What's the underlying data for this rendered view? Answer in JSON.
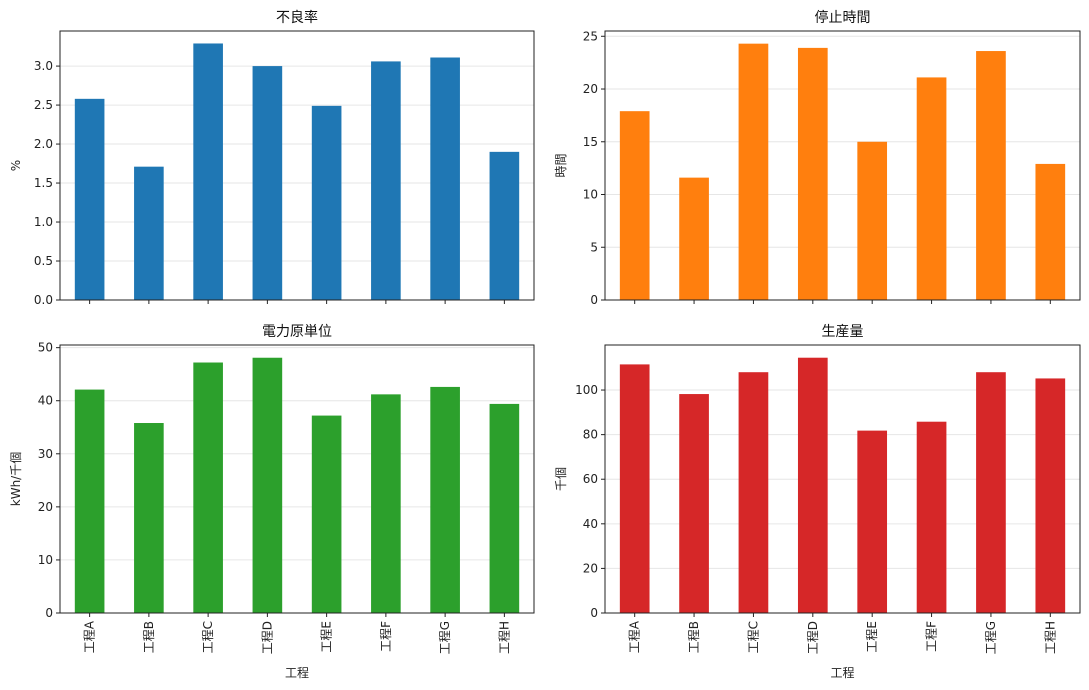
{
  "chart_data": [
    {
      "type": "bar",
      "title": "不良率",
      "ylabel": "%",
      "xlabel": "",
      "categories": [
        "工程A",
        "工程B",
        "工程C",
        "工程D",
        "工程E",
        "工程F",
        "工程G",
        "工程H"
      ],
      "values": [
        2.58,
        1.71,
        3.29,
        3.0,
        2.49,
        3.06,
        3.11,
        1.9
      ],
      "ylim": [
        0,
        3.45
      ],
      "yticks": [
        "0.0",
        "0.5",
        "1.0",
        "1.5",
        "2.0",
        "2.5",
        "3.0"
      ],
      "color": "#1f77b4",
      "show_xticklabels": false,
      "grid": "y"
    },
    {
      "type": "bar",
      "title": "停止時間",
      "ylabel": "時間",
      "xlabel": "",
      "categories": [
        "工程A",
        "工程B",
        "工程C",
        "工程D",
        "工程E",
        "工程F",
        "工程G",
        "工程H"
      ],
      "values": [
        17.9,
        11.6,
        24.3,
        23.9,
        15.0,
        21.1,
        23.6,
        12.9
      ],
      "ylim": [
        0,
        25.5
      ],
      "yticks": [
        "0",
        "5",
        "10",
        "15",
        "20",
        "25"
      ],
      "color": "#ff7f0e",
      "show_xticklabels": false,
      "grid": "y"
    },
    {
      "type": "bar",
      "title": "電力原単位",
      "ylabel": "kWh/千個",
      "xlabel": "工程",
      "categories": [
        "工程A",
        "工程B",
        "工程C",
        "工程D",
        "工程E",
        "工程F",
        "工程G",
        "工程H"
      ],
      "values": [
        42.1,
        35.8,
        47.2,
        48.1,
        37.2,
        41.2,
        42.6,
        39.4
      ],
      "ylim": [
        0,
        50.5
      ],
      "yticks": [
        "0",
        "10",
        "20",
        "30",
        "40",
        "50"
      ],
      "color": "#2ca02c",
      "show_xticklabels": true,
      "grid": "y"
    },
    {
      "type": "bar",
      "title": "生産量",
      "ylabel": "千個",
      "xlabel": "工程",
      "categories": [
        "工程A",
        "工程B",
        "工程C",
        "工程D",
        "工程E",
        "工程F",
        "工程G",
        "工程H"
      ],
      "values": [
        111.5,
        98.2,
        108.0,
        114.5,
        81.8,
        85.8,
        108.0,
        105.2
      ],
      "ylim": [
        0,
        120.2
      ],
      "yticks": [
        "0",
        "20",
        "40",
        "60",
        "80",
        "100"
      ],
      "color": "#d62728",
      "show_xticklabels": true,
      "grid": "y"
    }
  ]
}
